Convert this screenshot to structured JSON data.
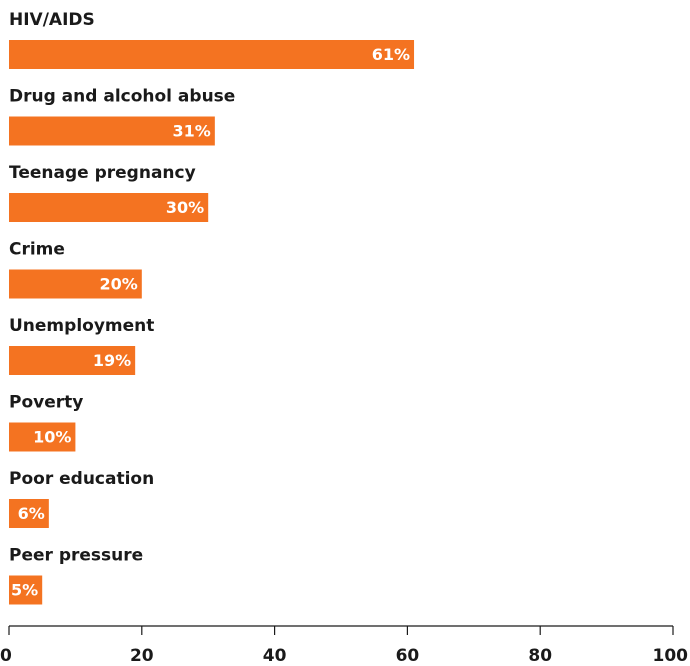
{
  "chart_data": {
    "type": "bar",
    "orientation": "horizontal",
    "categories": [
      "HIV/AIDS",
      "Drug and alcohol abuse",
      "Teenage pregnancy",
      "Crime",
      "Unemployment",
      "Poverty",
      "Poor education",
      "Peer pressure"
    ],
    "values": [
      61,
      31,
      30,
      20,
      19,
      10,
      6,
      5
    ],
    "value_labels": [
      "61%",
      "31%",
      "30%",
      "20%",
      "19%",
      "10%",
      "6%",
      "5%"
    ],
    "x_ticks": [
      "0",
      "20",
      "40",
      "60",
      "80",
      "100"
    ],
    "xlim": [
      0,
      100
    ],
    "grid": false,
    "bar_color": "#f47321"
  }
}
